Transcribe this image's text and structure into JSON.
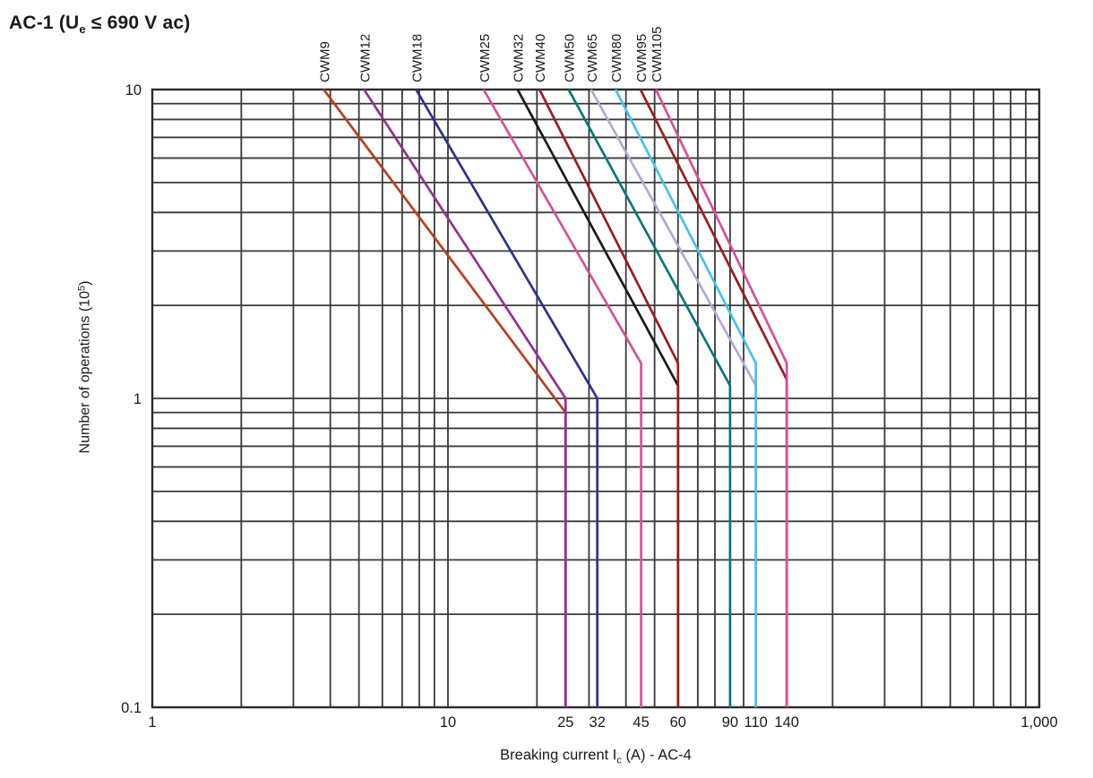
{
  "title": {
    "part1": "AC-1 (U",
    "sub": "e",
    "part2": " ≤ 690 V ac)"
  },
  "chart_data": {
    "type": "line",
    "title": "AC-1 (Ue ≤ 690 V ac)",
    "x_axis": {
      "label_part1": "Breaking current I",
      "label_sub": "c",
      "label_part2": " (A) - AC-4",
      "scale": "log",
      "min": 1,
      "max": 1000,
      "ticks": [
        {
          "value": 1,
          "label": "1"
        },
        {
          "value": 10,
          "label": "10"
        },
        {
          "value": 25,
          "label": "25"
        },
        {
          "value": 32,
          "label": "32"
        },
        {
          "value": 45,
          "label": "45"
        },
        {
          "value": 60,
          "label": "60"
        },
        {
          "value": 90,
          "label": "90"
        },
        {
          "value": 110,
          "label": "110"
        },
        {
          "value": 140,
          "label": "140"
        },
        {
          "value": 1000,
          "label": "1,000"
        }
      ]
    },
    "y_axis": {
      "label_part1": "Number of operations (10",
      "label_sup": "5",
      "label_part2": ")",
      "scale": "log",
      "min": 0.1,
      "max": 10,
      "ticks": [
        {
          "value": 10,
          "label": "10"
        },
        {
          "value": 1,
          "label": "1"
        },
        {
          "value": 0.1,
          "label": "0.1"
        }
      ]
    },
    "grid": {
      "style": "log-minor-both",
      "color": "#3a3a3a",
      "border_color": "#2b2b2b"
    },
    "series": [
      {
        "name": "CWM9",
        "color": "#b5401e",
        "points": [
          [
            3.8,
            10
          ],
          [
            25,
            0.9
          ],
          [
            25,
            0.1
          ]
        ]
      },
      {
        "name": "CWM12",
        "color": "#982d96",
        "points": [
          [
            5.2,
            10
          ],
          [
            25,
            1.0
          ],
          [
            25,
            0.1
          ]
        ]
      },
      {
        "name": "CWM18",
        "color": "#2e3191",
        "points": [
          [
            7.8,
            10
          ],
          [
            32,
            1.0
          ],
          [
            32,
            0.1
          ]
        ]
      },
      {
        "name": "CWM25",
        "color": "#d6509d",
        "points": [
          [
            13.2,
            10
          ],
          [
            45,
            1.3
          ],
          [
            45,
            0.1
          ]
        ]
      },
      {
        "name": "CWM32",
        "color": "#1a1a1a",
        "points": [
          [
            17.2,
            10
          ],
          [
            60,
            1.1
          ],
          [
            60,
            0.1
          ]
        ]
      },
      {
        "name": "CWM40",
        "color": "#9b1c20",
        "points": [
          [
            20.4,
            10
          ],
          [
            60,
            1.3
          ],
          [
            60,
            0.1
          ]
        ]
      },
      {
        "name": "CWM50",
        "color": "#007a76",
        "points": [
          [
            25.6,
            10
          ],
          [
            90,
            1.1
          ],
          [
            90,
            0.1
          ]
        ]
      },
      {
        "name": "CWM65",
        "color": "#b1a9d6",
        "points": [
          [
            30.5,
            10
          ],
          [
            110,
            1.1
          ],
          [
            110,
            0.1
          ]
        ]
      },
      {
        "name": "CWM80",
        "color": "#45c1f0",
        "points": [
          [
            36.9,
            10
          ],
          [
            110,
            1.3
          ],
          [
            110,
            0.1
          ]
        ]
      },
      {
        "name": "CWM95",
        "color": "#9b1c20",
        "points": [
          [
            44.8,
            10
          ],
          [
            140,
            1.15
          ],
          [
            140,
            0.1
          ]
        ]
      },
      {
        "name": "CWM105",
        "color": "#d6509d",
        "points": [
          [
            50.5,
            10
          ],
          [
            140,
            1.3
          ],
          [
            140,
            0.1
          ]
        ]
      }
    ]
  }
}
